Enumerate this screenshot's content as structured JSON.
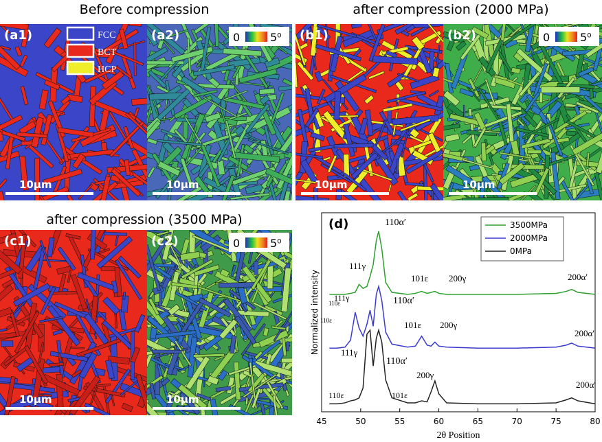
{
  "headings": [
    "Before compression",
    "after compression (2000 MPa)",
    "after compression (3500 MPa)"
  ],
  "panels": [
    {
      "label": "(a1)",
      "scale": "10μm"
    },
    {
      "label": "(a2)",
      "scale": "10μm",
      "colorbar": [
        "0",
        "5⁰"
      ]
    },
    {
      "label": "(b1)",
      "scale": "10μm"
    },
    {
      "label": "(b2)",
      "scale": "10μm",
      "colorbar": [
        "0",
        "5⁰"
      ]
    },
    {
      "label": "(c1)",
      "scale": "10μm"
    },
    {
      "label": "(c2)",
      "scale": "10μm",
      "colorbar": [
        "0",
        "5⁰"
      ]
    }
  ],
  "phase_legend": [
    {
      "name": "FCC",
      "color": "#3a45c8"
    },
    {
      "name": "BCT",
      "color": "#e8291c"
    },
    {
      "name": "HCP",
      "color": "#f0ee2a"
    }
  ],
  "chart_data": {
    "type": "line",
    "label": "(d)",
    "xlabel": "2θ Position",
    "ylabel": "Normalized intensity",
    "xlim": [
      45,
      80
    ],
    "xticks": [
      45,
      50,
      55,
      60,
      65,
      70,
      75,
      80
    ],
    "ylim": [
      0,
      10
    ],
    "legend": "upper right",
    "x": [
      46,
      47,
      48,
      48.7,
      49.3,
      49.8,
      50.3,
      50.8,
      51.2,
      51.6,
      52,
      52.3,
      52.7,
      53.2,
      54,
      56,
      57,
      57.8,
      58.5,
      59,
      59.5,
      60,
      61,
      65,
      70,
      75,
      76.3,
      77,
      77.8,
      80
    ],
    "series": [
      {
        "name": "3500MPa",
        "color": "#2ca02c",
        "values": [
          5.9,
          5.9,
          5.9,
          5.95,
          6.0,
          6.4,
          6.2,
          6.3,
          6.8,
          7.4,
          8.6,
          9.07,
          8.2,
          6.5,
          6.0,
          5.9,
          5.95,
          6.05,
          5.95,
          6.0,
          6.05,
          5.95,
          5.9,
          5.9,
          5.9,
          5.95,
          6.05,
          6.15,
          6.0,
          5.9
        ]
      },
      {
        "name": "2000MPa",
        "color": "#3a3ad0",
        "values": [
          3.2,
          3.2,
          3.25,
          3.6,
          5.0,
          4.2,
          3.8,
          4.4,
          5.1,
          4.3,
          5.9,
          6.3,
          5.6,
          4.0,
          3.4,
          3.25,
          3.3,
          3.8,
          3.35,
          3.3,
          3.5,
          3.3,
          3.25,
          3.2,
          3.2,
          3.25,
          3.35,
          3.45,
          3.3,
          3.2
        ]
      },
      {
        "name": "0MPa",
        "color": "#222222",
        "values": [
          0.4,
          0.4,
          0.45,
          0.55,
          0.6,
          0.7,
          1.2,
          3.9,
          4.1,
          2.3,
          3.7,
          4.1,
          3.5,
          1.6,
          0.7,
          0.45,
          0.45,
          0.55,
          0.5,
          1.0,
          1.55,
          0.9,
          0.45,
          0.4,
          0.4,
          0.45,
          0.6,
          0.7,
          0.55,
          0.4
        ]
      }
    ],
    "annotations": [
      "110ε",
      "111γ",
      "110α′",
      "101ε",
      "200γ",
      "200α′",
      "110ε",
      "111γ",
      "110α′",
      "101ε",
      "200γ",
      "200α′",
      "110ε",
      "111γ",
      "110α′",
      "101ε",
      "200γ",
      "200α′"
    ]
  }
}
